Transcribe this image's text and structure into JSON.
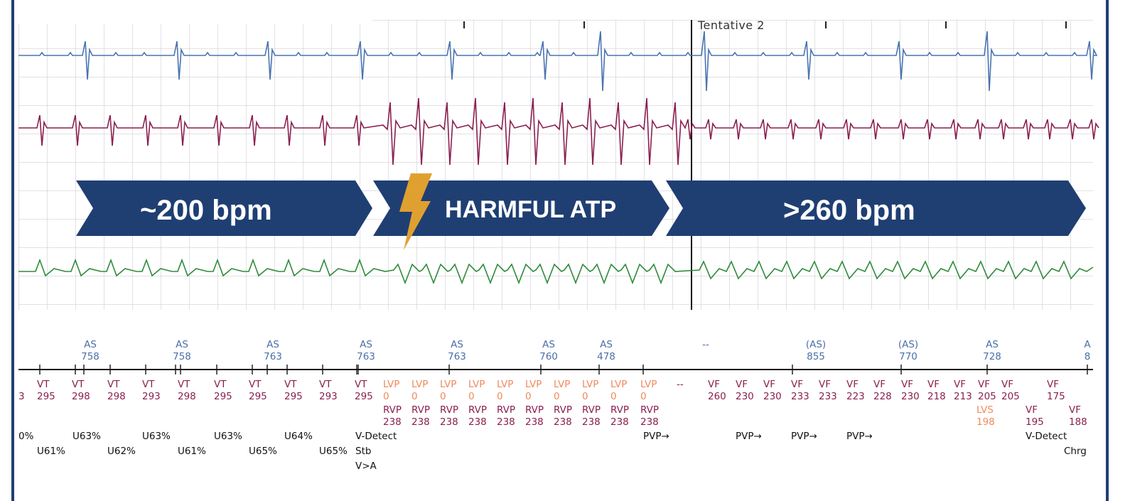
{
  "banners": {
    "rate_before": "~200 bpm",
    "therapy": "HARMFUL ATP",
    "rate_after": ">260 bpm"
  },
  "episode_marker": "Tentative 2",
  "colors": {
    "banner": "#1f3f73",
    "bolt": "#e0a030",
    "atrial_egm": "#4a74b0",
    "ventricular_egm": "#8a1f4f",
    "far_field_egm": "#2e8b3a",
    "lvp": "#f08a5d"
  },
  "atrial_markers": [
    {
      "label": "AS",
      "interval": "758"
    },
    {
      "label": "AS",
      "interval": "758"
    },
    {
      "label": "AS",
      "interval": "763"
    },
    {
      "label": "AS",
      "interval": "763"
    },
    {
      "label": "AS",
      "interval": "763"
    },
    {
      "label": "AS",
      "interval": "760"
    },
    {
      "label": "AS",
      "interval": "478"
    },
    {
      "label": "--",
      "interval": ""
    },
    {
      "label": "(AS)",
      "interval": "855"
    },
    {
      "label": "(AS)",
      "interval": "770"
    },
    {
      "label": "AS",
      "interval": "728"
    },
    {
      "label": "A",
      "interval": "8"
    }
  ],
  "vt_markers": [
    {
      "label": "",
      "interval": "3"
    },
    {
      "label": "VT",
      "interval": "295"
    },
    {
      "label": "VT",
      "interval": "298"
    },
    {
      "label": "VT",
      "interval": "298"
    },
    {
      "label": "VT",
      "interval": "293"
    },
    {
      "label": "VT",
      "interval": "298"
    },
    {
      "label": "VT",
      "interval": "295"
    },
    {
      "label": "VT",
      "interval": "295"
    },
    {
      "label": "VT",
      "interval": "295"
    },
    {
      "label": "VT",
      "interval": "293"
    },
    {
      "label": "VT",
      "interval": "295"
    }
  ],
  "atp_markers": {
    "lvp": {
      "label": "LVP",
      "interval": "0"
    },
    "rvp": {
      "label": "RVP",
      "interval": "238"
    },
    "count": 10,
    "after": "--"
  },
  "vf_markers": [
    {
      "label": "VF",
      "interval": "260"
    },
    {
      "label": "VF",
      "interval": "230"
    },
    {
      "label": "VF",
      "interval": "230"
    },
    {
      "label": "VF",
      "interval": "233"
    },
    {
      "label": "VF",
      "interval": "233"
    },
    {
      "label": "VF",
      "interval": "223"
    },
    {
      "label": "VF",
      "interval": "228"
    },
    {
      "label": "VF",
      "interval": "230"
    },
    {
      "label": "VF",
      "interval": "218"
    },
    {
      "label": "VF",
      "interval": "213"
    },
    {
      "label": "VF",
      "interval": "205"
    },
    {
      "label": "VF",
      "interval": "205"
    },
    {
      "label": "VF",
      "interval": "175"
    }
  ],
  "vf_lower": [
    {
      "label": "LVS",
      "interval": "198"
    },
    {
      "label": "VF",
      "interval": "195"
    },
    {
      "label": "VF",
      "interval": "188"
    }
  ],
  "status_row_1": [
    "0%",
    "U63%",
    "U63%",
    "U63%",
    "U64%",
    "V-Detect",
    "PVP→",
    "PVP→",
    "PVP→",
    "PVP→",
    "V-Detect"
  ],
  "status_row_2": [
    "U61%",
    "U62%",
    "U61%",
    "U65%",
    "U65%",
    "Stb",
    "Chrg"
  ],
  "status_row_3": [
    "V>A"
  ]
}
